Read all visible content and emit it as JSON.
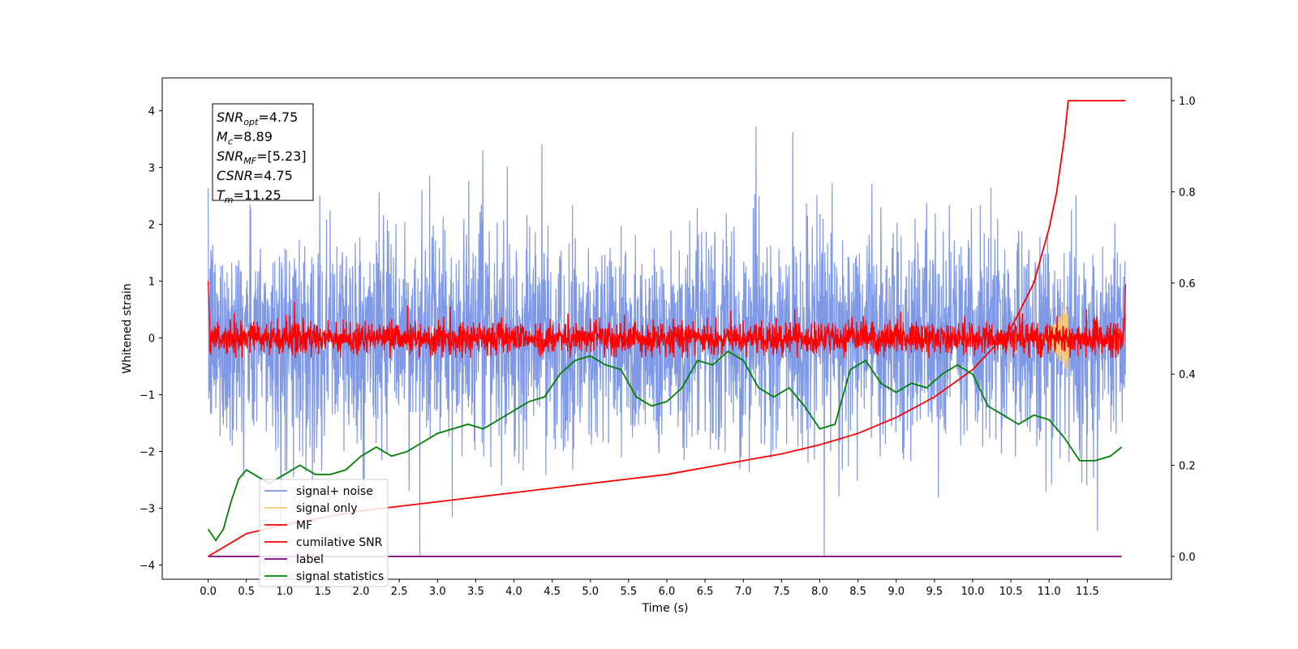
{
  "chart_data": {
    "type": "line",
    "xlabel": "Time (s)",
    "ylabel": "Whitened strain",
    "xlim": [
      -0.6,
      12.6
    ],
    "ylim": [
      -4.25,
      4.58
    ],
    "y2lim": [
      -0.05,
      1.05
    ],
    "xticks": [
      "0.0",
      "0.5",
      "1.0",
      "1.5",
      "2.0",
      "2.5",
      "3.0",
      "3.5",
      "4.0",
      "4.5",
      "5.0",
      "5.5",
      "6.0",
      "6.5",
      "7.0",
      "7.5",
      "8.0",
      "8.5",
      "9.0",
      "9.5",
      "10.0",
      "10.5",
      "11.0",
      "11.5"
    ],
    "yticks": [
      "−4",
      "−3",
      "−2",
      "−1",
      "0",
      "1",
      "2",
      "3",
      "4"
    ],
    "y2ticks": [
      "0.0",
      "0.2",
      "0.4",
      "0.6",
      "0.8",
      "1.0"
    ],
    "grid": false,
    "legend_position": "lower-left",
    "stats_box": {
      "lines": [
        {
          "sym": "SNR",
          "sub": "opt",
          "value": "=4.75"
        },
        {
          "sym": "M",
          "sub": "c",
          "value": "=8.89"
        },
        {
          "sym": "SNR",
          "sub": "MF",
          "value": "=[5.23]"
        },
        {
          "sym": "CSNR",
          "sub": "",
          "value": "=4.75"
        },
        {
          "sym": "T",
          "sub": "m",
          "value": "=11.25"
        }
      ]
    },
    "series": [
      {
        "name": "signal+ noise",
        "color": "#7893e6",
        "axis": "left",
        "kind": "noise",
        "x_range": [
          0,
          12
        ],
        "amplitude_range": [
          -3.85,
          4.15
        ]
      },
      {
        "name": "signal only",
        "color": "#f5c97a",
        "axis": "left",
        "kind": "chirp",
        "x_range": [
          10.9,
          11.25
        ],
        "amplitude_range": [
          -0.5,
          0.75
        ]
      },
      {
        "name": "MF",
        "color": "#ff0000",
        "axis": "left",
        "kind": "noise",
        "x_range": [
          0,
          12
        ],
        "amplitude_range": [
          -0.35,
          1.0
        ]
      },
      {
        "name": "cumilative SNR",
        "color": "#ff0000",
        "axis": "right",
        "x": [
          0.0,
          0.5,
          1.0,
          1.5,
          2.0,
          2.5,
          3.0,
          3.5,
          4.0,
          4.5,
          5.0,
          5.5,
          6.0,
          6.5,
          7.0,
          7.5,
          8.0,
          8.5,
          9.0,
          9.5,
          10.0,
          10.5,
          10.8,
          11.0,
          11.1,
          11.2,
          11.25,
          12.0
        ],
        "y": [
          0.0,
          0.05,
          0.07,
          0.085,
          0.1,
          0.11,
          0.12,
          0.13,
          0.14,
          0.15,
          0.16,
          0.17,
          0.18,
          0.195,
          0.21,
          0.225,
          0.245,
          0.27,
          0.305,
          0.35,
          0.41,
          0.5,
          0.6,
          0.72,
          0.8,
          0.92,
          1.0,
          1.0
        ]
      },
      {
        "name": "label",
        "color": "#800080",
        "axis": "right",
        "x": [
          0.0,
          11.95
        ],
        "y": [
          0.0,
          0.0
        ]
      },
      {
        "name": "signal statistics",
        "color": "#008000",
        "axis": "right",
        "x": [
          0.0,
          0.1,
          0.2,
          0.3,
          0.4,
          0.5,
          0.6,
          0.8,
          1.0,
          1.2,
          1.4,
          1.6,
          1.8,
          2.0,
          2.2,
          2.4,
          2.6,
          2.8,
          3.0,
          3.2,
          3.4,
          3.6,
          3.8,
          4.0,
          4.2,
          4.4,
          4.6,
          4.8,
          5.0,
          5.2,
          5.4,
          5.6,
          5.8,
          6.0,
          6.2,
          6.4,
          6.6,
          6.8,
          7.0,
          7.2,
          7.4,
          7.6,
          7.8,
          8.0,
          8.2,
          8.4,
          8.6,
          8.8,
          9.0,
          9.2,
          9.4,
          9.6,
          9.8,
          10.0,
          10.2,
          10.4,
          10.6,
          10.8,
          11.0,
          11.2,
          11.4,
          11.6,
          11.8,
          11.95
        ],
        "y": [
          0.06,
          0.035,
          0.06,
          0.12,
          0.17,
          0.19,
          0.18,
          0.16,
          0.18,
          0.2,
          0.18,
          0.18,
          0.19,
          0.22,
          0.24,
          0.22,
          0.23,
          0.25,
          0.27,
          0.28,
          0.29,
          0.28,
          0.3,
          0.32,
          0.34,
          0.35,
          0.4,
          0.43,
          0.44,
          0.42,
          0.41,
          0.35,
          0.33,
          0.34,
          0.37,
          0.43,
          0.42,
          0.45,
          0.43,
          0.37,
          0.35,
          0.37,
          0.33,
          0.28,
          0.29,
          0.41,
          0.43,
          0.38,
          0.36,
          0.38,
          0.37,
          0.4,
          0.42,
          0.4,
          0.33,
          0.31,
          0.29,
          0.31,
          0.3,
          0.26,
          0.21,
          0.21,
          0.22,
          0.24
        ]
      }
    ]
  }
}
